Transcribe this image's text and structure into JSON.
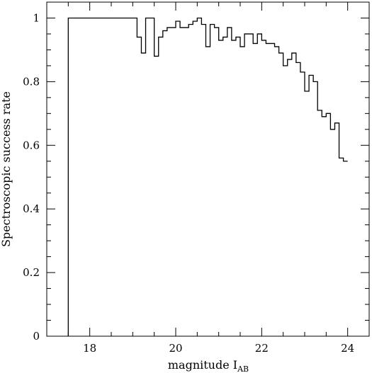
{
  "chart_data": {
    "type": "step",
    "xlabel": "magnitude I",
    "xlabel_subscript": "AB",
    "ylabel": "Spectroscopic success rate",
    "xlim": [
      17.0,
      24.5
    ],
    "ylim": [
      0,
      1.05
    ],
    "x_ticks": [
      18,
      20,
      22,
      24
    ],
    "x_tick_labels": [
      "18",
      "20",
      "22",
      "24"
    ],
    "y_ticks": [
      0,
      0.2,
      0.4,
      0.6,
      0.8,
      1
    ],
    "y_tick_labels": [
      "0",
      "0.2",
      "0.4",
      "0.6",
      "0.8",
      "1"
    ],
    "x_minor_step": 0.5,
    "y_minor_step": 0.05,
    "grid": false,
    "series": [
      {
        "bin_edges": [
          17.5,
          19.1,
          19.2,
          19.3,
          19.5,
          19.6,
          19.7,
          19.8,
          19.9,
          20.0,
          20.1,
          20.2,
          20.3,
          20.4,
          20.5,
          20.6,
          20.7,
          20.8,
          20.9,
          21.0,
          21.1,
          21.2,
          21.3,
          21.4,
          21.5,
          21.6,
          21.7,
          21.8,
          21.9,
          22.0,
          22.1,
          22.2,
          22.3,
          22.4,
          22.5,
          22.6,
          22.7,
          22.8,
          22.9,
          23.0,
          23.1,
          23.2,
          23.3,
          23.4,
          23.5,
          23.6,
          23.7,
          23.8,
          23.9,
          24.0
        ],
        "values": [
          1.0,
          0.94,
          0.89,
          1.0,
          0.88,
          0.94,
          0.96,
          0.97,
          0.97,
          0.99,
          0.97,
          0.97,
          0.98,
          0.99,
          1.0,
          0.98,
          0.91,
          0.98,
          0.97,
          0.93,
          0.94,
          0.97,
          0.93,
          0.94,
          0.91,
          0.95,
          0.95,
          0.92,
          0.95,
          0.93,
          0.92,
          0.92,
          0.91,
          0.89,
          0.85,
          0.87,
          0.89,
          0.86,
          0.83,
          0.77,
          0.82,
          0.8,
          0.71,
          0.69,
          0.7,
          0.65,
          0.67,
          0.56,
          0.55,
          0.55
        ]
      }
    ]
  }
}
